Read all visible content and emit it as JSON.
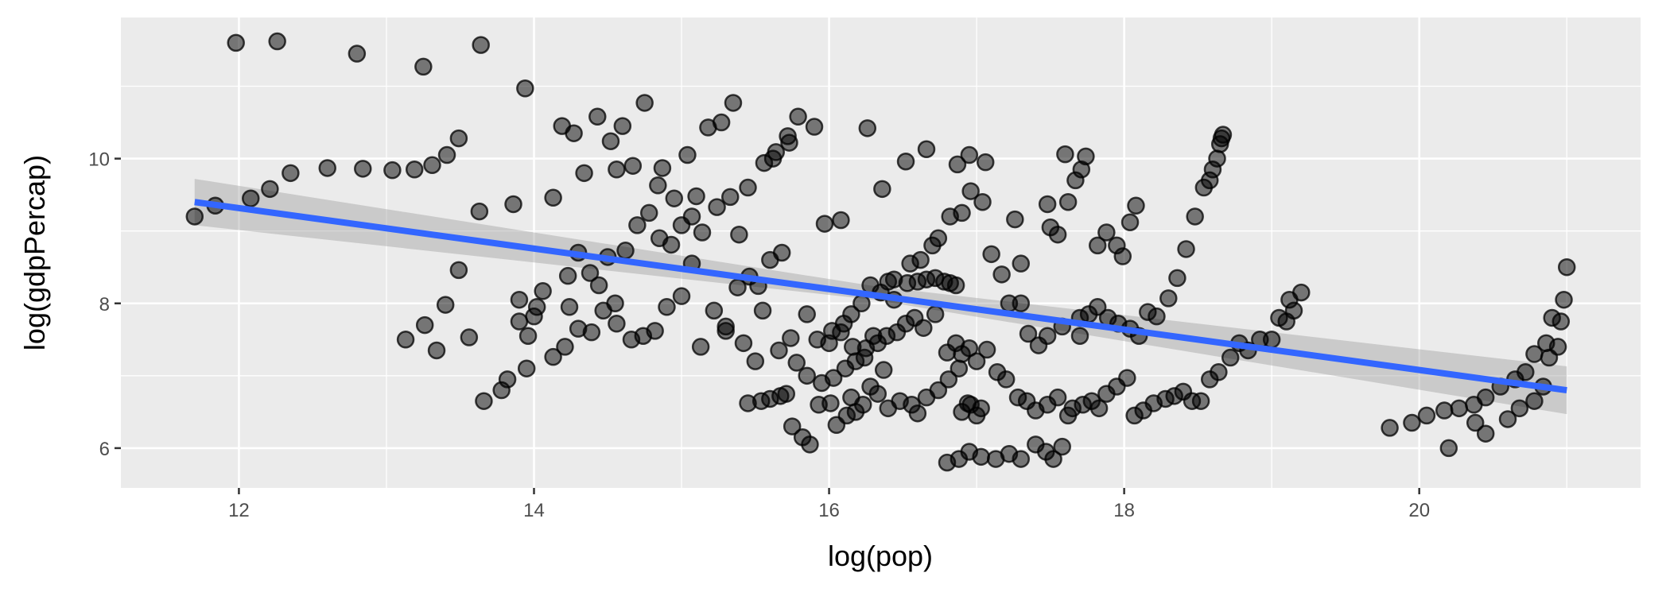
{
  "chart_data": {
    "type": "scatter",
    "title": "",
    "xlabel": "log(pop)",
    "ylabel": "log(gdpPercap)",
    "xlim": [
      11.2,
      21.5
    ],
    "ylim": [
      5.45,
      11.95
    ],
    "x_ticks": [
      12,
      14,
      16,
      18,
      20
    ],
    "x_tick_labels": [
      "12",
      "14",
      "16",
      "18",
      "20"
    ],
    "y_ticks": [
      6,
      8,
      10
    ],
    "y_tick_labels": [
      "6",
      "8",
      "10"
    ],
    "grid": true,
    "legend": "none",
    "colors": {
      "panel": "#ebebeb",
      "grid": "#ffffff",
      "points": "#000000",
      "fit_line": "#3366ff",
      "ribbon": "#999999"
    },
    "fit_line": {
      "x0": 11.7,
      "y0": 9.4,
      "x1": 21.0,
      "y1": 6.8
    },
    "confidence_band": {
      "x": [
        11.7,
        16.3,
        21.0
      ],
      "lower": [
        9.08,
        8.05,
        6.47
      ],
      "upper": [
        9.72,
        8.24,
        7.13
      ]
    },
    "points": [
      [
        11.98,
        11.6
      ],
      [
        12.26,
        11.62
      ],
      [
        12.8,
        11.45
      ],
      [
        13.25,
        11.27
      ],
      [
        13.64,
        11.57
      ],
      [
        13.94,
        10.97
      ],
      [
        11.7,
        9.2
      ],
      [
        11.84,
        9.35
      ],
      [
        12.08,
        9.45
      ],
      [
        12.21,
        9.58
      ],
      [
        12.35,
        9.8
      ],
      [
        12.6,
        9.87
      ],
      [
        12.84,
        9.86
      ],
      [
        13.04,
        9.84
      ],
      [
        13.19,
        9.85
      ],
      [
        13.31,
        9.91
      ],
      [
        13.41,
        10.05
      ],
      [
        13.49,
        10.28
      ],
      [
        13.63,
        9.27
      ],
      [
        13.86,
        9.37
      ],
      [
        13.13,
        7.5
      ],
      [
        13.26,
        7.7
      ],
      [
        13.34,
        7.35
      ],
      [
        13.4,
        7.98
      ],
      [
        13.49,
        8.46
      ],
      [
        13.56,
        7.53
      ],
      [
        13.66,
        6.65
      ],
      [
        13.78,
        6.8
      ],
      [
        13.9,
        7.75
      ],
      [
        13.96,
        7.55
      ],
      [
        14.0,
        7.82
      ],
      [
        14.06,
        8.17
      ],
      [
        14.13,
        7.26
      ],
      [
        14.21,
        7.4
      ],
      [
        13.82,
        6.95
      ],
      [
        13.95,
        7.1
      ],
      [
        13.9,
        8.05
      ],
      [
        14.02,
        7.95
      ],
      [
        14.13,
        9.46
      ],
      [
        14.19,
        10.45
      ],
      [
        14.27,
        10.35
      ],
      [
        14.34,
        9.8
      ],
      [
        14.43,
        10.58
      ],
      [
        14.52,
        10.24
      ],
      [
        14.56,
        9.85
      ],
      [
        14.6,
        10.45
      ],
      [
        14.75,
        10.77
      ],
      [
        14.87,
        9.87
      ],
      [
        14.67,
        9.9
      ],
      [
        14.84,
        9.63
      ],
      [
        14.95,
        9.45
      ],
      [
        15.04,
        10.05
      ],
      [
        15.1,
        9.48
      ],
      [
        15.18,
        10.43
      ],
      [
        15.27,
        10.5
      ],
      [
        15.35,
        10.77
      ],
      [
        15.45,
        9.6
      ],
      [
        15.56,
        9.94
      ],
      [
        15.64,
        10.09
      ],
      [
        15.72,
        10.31
      ],
      [
        15.79,
        10.58
      ],
      [
        15.9,
        10.44
      ],
      [
        15.62,
        10.0
      ],
      [
        15.73,
        10.22
      ],
      [
        15.97,
        9.1
      ],
      [
        16.08,
        9.15
      ],
      [
        16.26,
        10.42
      ],
      [
        16.36,
        9.58
      ],
      [
        16.52,
        9.96
      ],
      [
        16.66,
        10.13
      ],
      [
        16.87,
        9.92
      ],
      [
        16.95,
        10.05
      ],
      [
        17.06,
        9.95
      ],
      [
        17.26,
        9.16
      ],
      [
        17.48,
        9.37
      ],
      [
        17.6,
        10.06
      ],
      [
        14.23,
        8.38
      ],
      [
        14.3,
        8.7
      ],
      [
        14.38,
        8.42
      ],
      [
        14.44,
        8.25
      ],
      [
        14.5,
        8.64
      ],
      [
        14.55,
        8.0
      ],
      [
        14.62,
        8.73
      ],
      [
        14.7,
        9.08
      ],
      [
        14.78,
        9.25
      ],
      [
        14.85,
        8.9
      ],
      [
        14.93,
        8.81
      ],
      [
        15.0,
        9.08
      ],
      [
        15.07,
        9.2
      ],
      [
        15.14,
        8.98
      ],
      [
        15.24,
        9.33
      ],
      [
        15.33,
        9.47
      ],
      [
        15.39,
        8.95
      ],
      [
        15.46,
        8.37
      ],
      [
        15.52,
        8.24
      ],
      [
        15.6,
        8.6
      ],
      [
        15.68,
        8.7
      ],
      [
        14.24,
        7.95
      ],
      [
        14.3,
        7.65
      ],
      [
        14.39,
        7.6
      ],
      [
        14.47,
        7.9
      ],
      [
        14.56,
        7.72
      ],
      [
        14.66,
        7.5
      ],
      [
        14.74,
        7.55
      ],
      [
        14.82,
        7.62
      ],
      [
        14.9,
        7.95
      ],
      [
        15.0,
        8.1
      ],
      [
        15.07,
        8.55
      ],
      [
        15.13,
        7.4
      ],
      [
        15.22,
        7.9
      ],
      [
        15.3,
        7.68
      ],
      [
        15.38,
        8.22
      ],
      [
        15.45,
        6.62
      ],
      [
        15.54,
        6.65
      ],
      [
        15.6,
        6.68
      ],
      [
        15.67,
        6.72
      ],
      [
        15.71,
        6.75
      ],
      [
        15.75,
        6.3
      ],
      [
        15.82,
        6.15
      ],
      [
        15.87,
        6.05
      ],
      [
        15.93,
        6.6
      ],
      [
        16.01,
        6.62
      ],
      [
        16.05,
        6.32
      ],
      [
        16.12,
        6.45
      ],
      [
        16.18,
        6.5
      ],
      [
        15.78,
        7.18
      ],
      [
        15.85,
        7.0
      ],
      [
        15.95,
        6.9
      ],
      [
        16.03,
        6.97
      ],
      [
        16.11,
        7.1
      ],
      [
        16.18,
        7.2
      ],
      [
        16.25,
        7.38
      ],
      [
        16.33,
        7.45
      ],
      [
        16.39,
        7.55
      ],
      [
        16.46,
        7.6
      ],
      [
        16.52,
        7.72
      ],
      [
        16.58,
        7.8
      ],
      [
        16.64,
        7.66
      ],
      [
        16.72,
        7.85
      ],
      [
        16.4,
        8.3
      ],
      [
        16.44,
        8.33
      ],
      [
        16.53,
        8.28
      ],
      [
        16.6,
        8.3
      ],
      [
        16.66,
        8.33
      ],
      [
        16.72,
        8.35
      ],
      [
        16.78,
        8.3
      ],
      [
        16.82,
        8.28
      ],
      [
        16.86,
        8.25
      ],
      [
        16.55,
        8.55
      ],
      [
        16.62,
        8.6
      ],
      [
        16.7,
        8.8
      ],
      [
        16.74,
        8.9
      ],
      [
        16.82,
        9.2
      ],
      [
        16.9,
        9.25
      ],
      [
        16.96,
        9.55
      ],
      [
        17.04,
        9.4
      ],
      [
        17.1,
        8.68
      ],
      [
        17.17,
        8.4
      ],
      [
        17.22,
        8.0
      ],
      [
        17.3,
        8.55
      ],
      [
        16.8,
        7.32
      ],
      [
        16.86,
        7.45
      ],
      [
        16.9,
        7.3
      ],
      [
        16.95,
        7.38
      ],
      [
        17.0,
        7.2
      ],
      [
        17.07,
        7.36
      ],
      [
        17.14,
        7.05
      ],
      [
        17.2,
        6.95
      ],
      [
        17.28,
        6.7
      ],
      [
        17.34,
        6.65
      ],
      [
        17.4,
        6.52
      ],
      [
        17.48,
        6.6
      ],
      [
        17.55,
        6.7
      ],
      [
        17.62,
        6.45
      ],
      [
        16.8,
        5.8
      ],
      [
        16.88,
        5.85
      ],
      [
        16.95,
        5.95
      ],
      [
        17.03,
        5.88
      ],
      [
        17.13,
        5.85
      ],
      [
        17.22,
        5.92
      ],
      [
        17.3,
        5.85
      ],
      [
        17.4,
        6.05
      ],
      [
        17.47,
        5.95
      ],
      [
        17.52,
        5.85
      ],
      [
        17.58,
        6.02
      ],
      [
        16.9,
        6.5
      ],
      [
        16.96,
        6.6
      ],
      [
        17.03,
        6.55
      ],
      [
        17.65,
        6.55
      ],
      [
        17.72,
        6.6
      ],
      [
        17.78,
        6.65
      ],
      [
        17.83,
        6.55
      ],
      [
        17.88,
        6.75
      ],
      [
        17.95,
        6.85
      ],
      [
        18.02,
        6.97
      ],
      [
        18.07,
        6.45
      ],
      [
        18.13,
        6.52
      ],
      [
        18.2,
        6.62
      ],
      [
        18.28,
        6.68
      ],
      [
        18.34,
        6.72
      ],
      [
        18.4,
        6.78
      ],
      [
        18.46,
        6.65
      ],
      [
        18.52,
        6.65
      ],
      [
        18.58,
        6.95
      ],
      [
        18.64,
        7.05
      ],
      [
        18.72,
        7.25
      ],
      [
        18.78,
        7.45
      ],
      [
        18.84,
        7.35
      ],
      [
        18.92,
        7.5
      ],
      [
        17.7,
        7.55
      ],
      [
        17.76,
        7.85
      ],
      [
        17.82,
        7.95
      ],
      [
        17.89,
        7.8
      ],
      [
        17.96,
        7.72
      ],
      [
        18.04,
        7.65
      ],
      [
        18.1,
        7.55
      ],
      [
        18.16,
        7.88
      ],
      [
        18.22,
        7.82
      ],
      [
        18.3,
        8.07
      ],
      [
        18.36,
        8.35
      ],
      [
        18.42,
        8.75
      ],
      [
        18.48,
        9.2
      ],
      [
        18.54,
        9.6
      ],
      [
        18.58,
        9.7
      ],
      [
        18.6,
        9.85
      ],
      [
        18.63,
        10.0
      ],
      [
        18.65,
        10.2
      ],
      [
        18.66,
        10.28
      ],
      [
        18.67,
        10.33
      ],
      [
        17.5,
        9.05
      ],
      [
        17.55,
        8.95
      ],
      [
        17.62,
        9.4
      ],
      [
        17.67,
        9.7
      ],
      [
        17.71,
        9.85
      ],
      [
        17.74,
        10.03
      ],
      [
        17.82,
        8.8
      ],
      [
        17.88,
        8.98
      ],
      [
        17.95,
        8.8
      ],
      [
        17.99,
        8.65
      ],
      [
        18.04,
        9.12
      ],
      [
        18.08,
        9.35
      ],
      [
        17.3,
        8.0
      ],
      [
        17.35,
        7.58
      ],
      [
        17.42,
        7.42
      ],
      [
        17.48,
        7.55
      ],
      [
        17.58,
        7.68
      ],
      [
        17.7,
        7.8
      ],
      [
        19.0,
        7.5
      ],
      [
        19.1,
        7.75
      ],
      [
        19.2,
        8.15
      ],
      [
        19.12,
        8.05
      ],
      [
        19.15,
        7.9
      ],
      [
        19.05,
        7.8
      ],
      [
        19.8,
        6.28
      ],
      [
        19.95,
        6.35
      ],
      [
        20.05,
        6.45
      ],
      [
        20.17,
        6.52
      ],
      [
        20.27,
        6.55
      ],
      [
        20.37,
        6.6
      ],
      [
        20.45,
        6.7
      ],
      [
        20.2,
        6.0
      ],
      [
        20.38,
        6.35
      ],
      [
        20.45,
        6.2
      ],
      [
        20.6,
        6.4
      ],
      [
        20.68,
        6.55
      ],
      [
        20.78,
        6.65
      ],
      [
        20.84,
        6.85
      ],
      [
        20.55,
        6.85
      ],
      [
        20.65,
        6.95
      ],
      [
        20.72,
        7.05
      ],
      [
        20.78,
        7.3
      ],
      [
        20.86,
        7.45
      ],
      [
        20.9,
        7.8
      ],
      [
        20.96,
        7.75
      ],
      [
        20.98,
        8.05
      ],
      [
        21.0,
        8.5
      ],
      [
        20.94,
        7.4
      ],
      [
        20.88,
        7.25
      ],
      [
        15.3,
        7.62
      ],
      [
        15.42,
        7.45
      ],
      [
        15.5,
        7.2
      ],
      [
        15.55,
        7.9
      ],
      [
        15.66,
        7.35
      ],
      [
        15.74,
        7.52
      ],
      [
        15.85,
        7.85
      ],
      [
        15.92,
        7.5
      ],
      [
        16.0,
        7.45
      ],
      [
        16.08,
        7.6
      ],
      [
        16.16,
        7.4
      ],
      [
        16.24,
        7.25
      ],
      [
        16.3,
        7.55
      ],
      [
        16.37,
        7.08
      ],
      [
        16.02,
        7.62
      ],
      [
        16.1,
        7.72
      ],
      [
        16.15,
        7.85
      ],
      [
        16.22,
        8.0
      ],
      [
        16.28,
        8.25
      ],
      [
        16.35,
        8.15
      ],
      [
        16.44,
        8.05
      ],
      [
        16.15,
        6.7
      ],
      [
        16.23,
        6.6
      ],
      [
        16.28,
        6.85
      ],
      [
        16.33,
        6.75
      ],
      [
        16.4,
        6.55
      ],
      [
        16.48,
        6.65
      ],
      [
        16.56,
        6.6
      ],
      [
        16.6,
        6.48
      ],
      [
        16.66,
        6.7
      ],
      [
        16.74,
        6.8
      ],
      [
        16.81,
        6.95
      ],
      [
        16.88,
        7.1
      ],
      [
        16.94,
        6.62
      ],
      [
        17.0,
        6.45
      ]
    ]
  }
}
